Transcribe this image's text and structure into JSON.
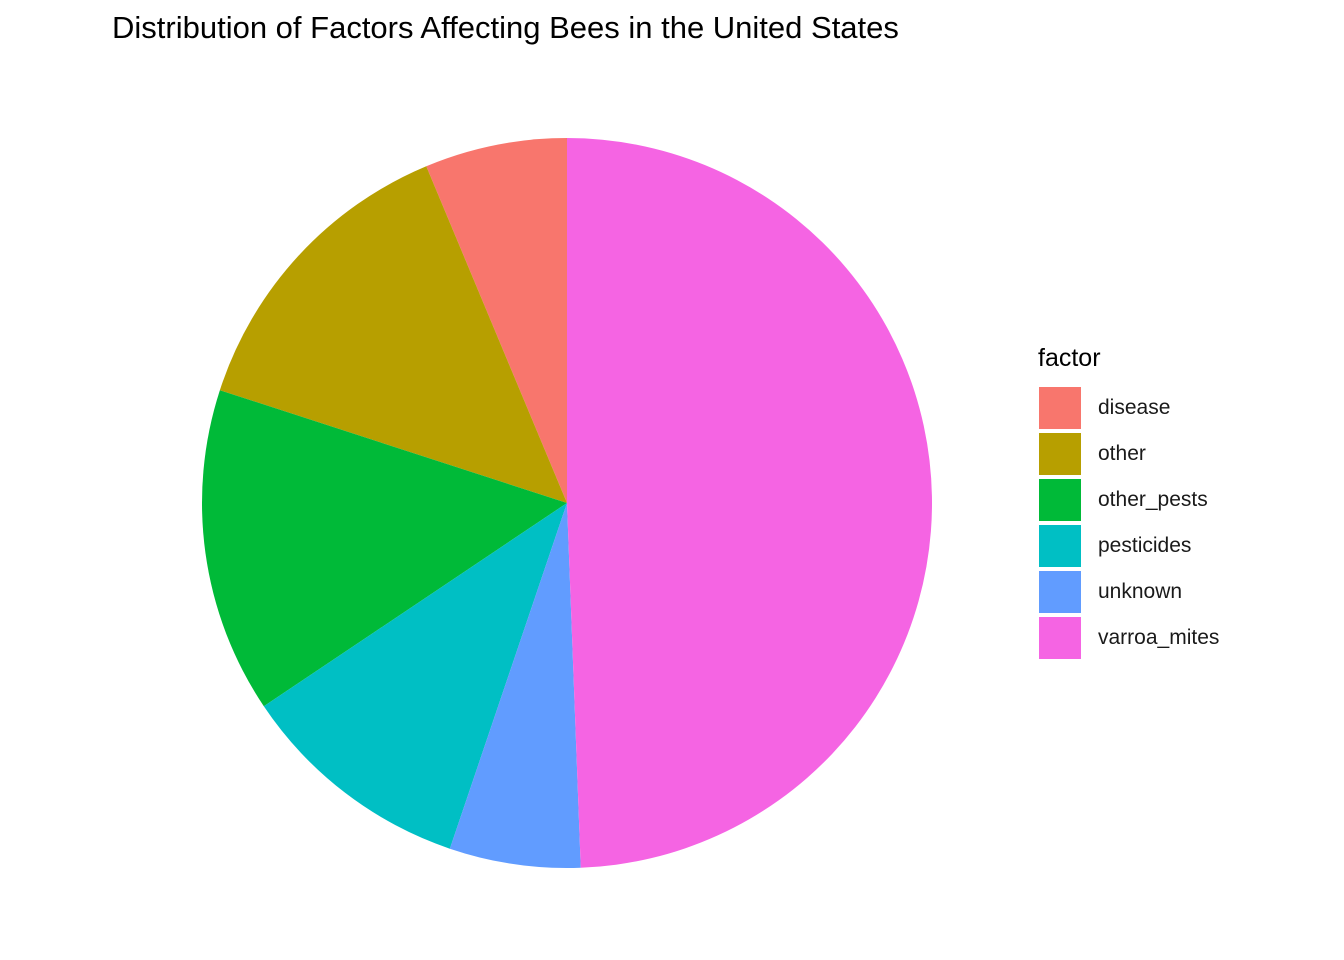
{
  "chart_data": {
    "type": "pie",
    "title": "Distribution of Factors Affecting Bees in the United States",
    "legend_title": "factor",
    "legend_position": "right",
    "categories": [
      "disease",
      "other",
      "other_pests",
      "pesticides",
      "unknown",
      "varroa_mites"
    ],
    "values": [
      6.3,
      13.7,
      14.4,
      10.4,
      5.8,
      49.4
    ],
    "colors": [
      "#F8766D",
      "#B79F00",
      "#00BA38",
      "#00BFC4",
      "#619CFF",
      "#F564E3"
    ],
    "direction": "counterclockwise from top",
    "grid": false
  }
}
